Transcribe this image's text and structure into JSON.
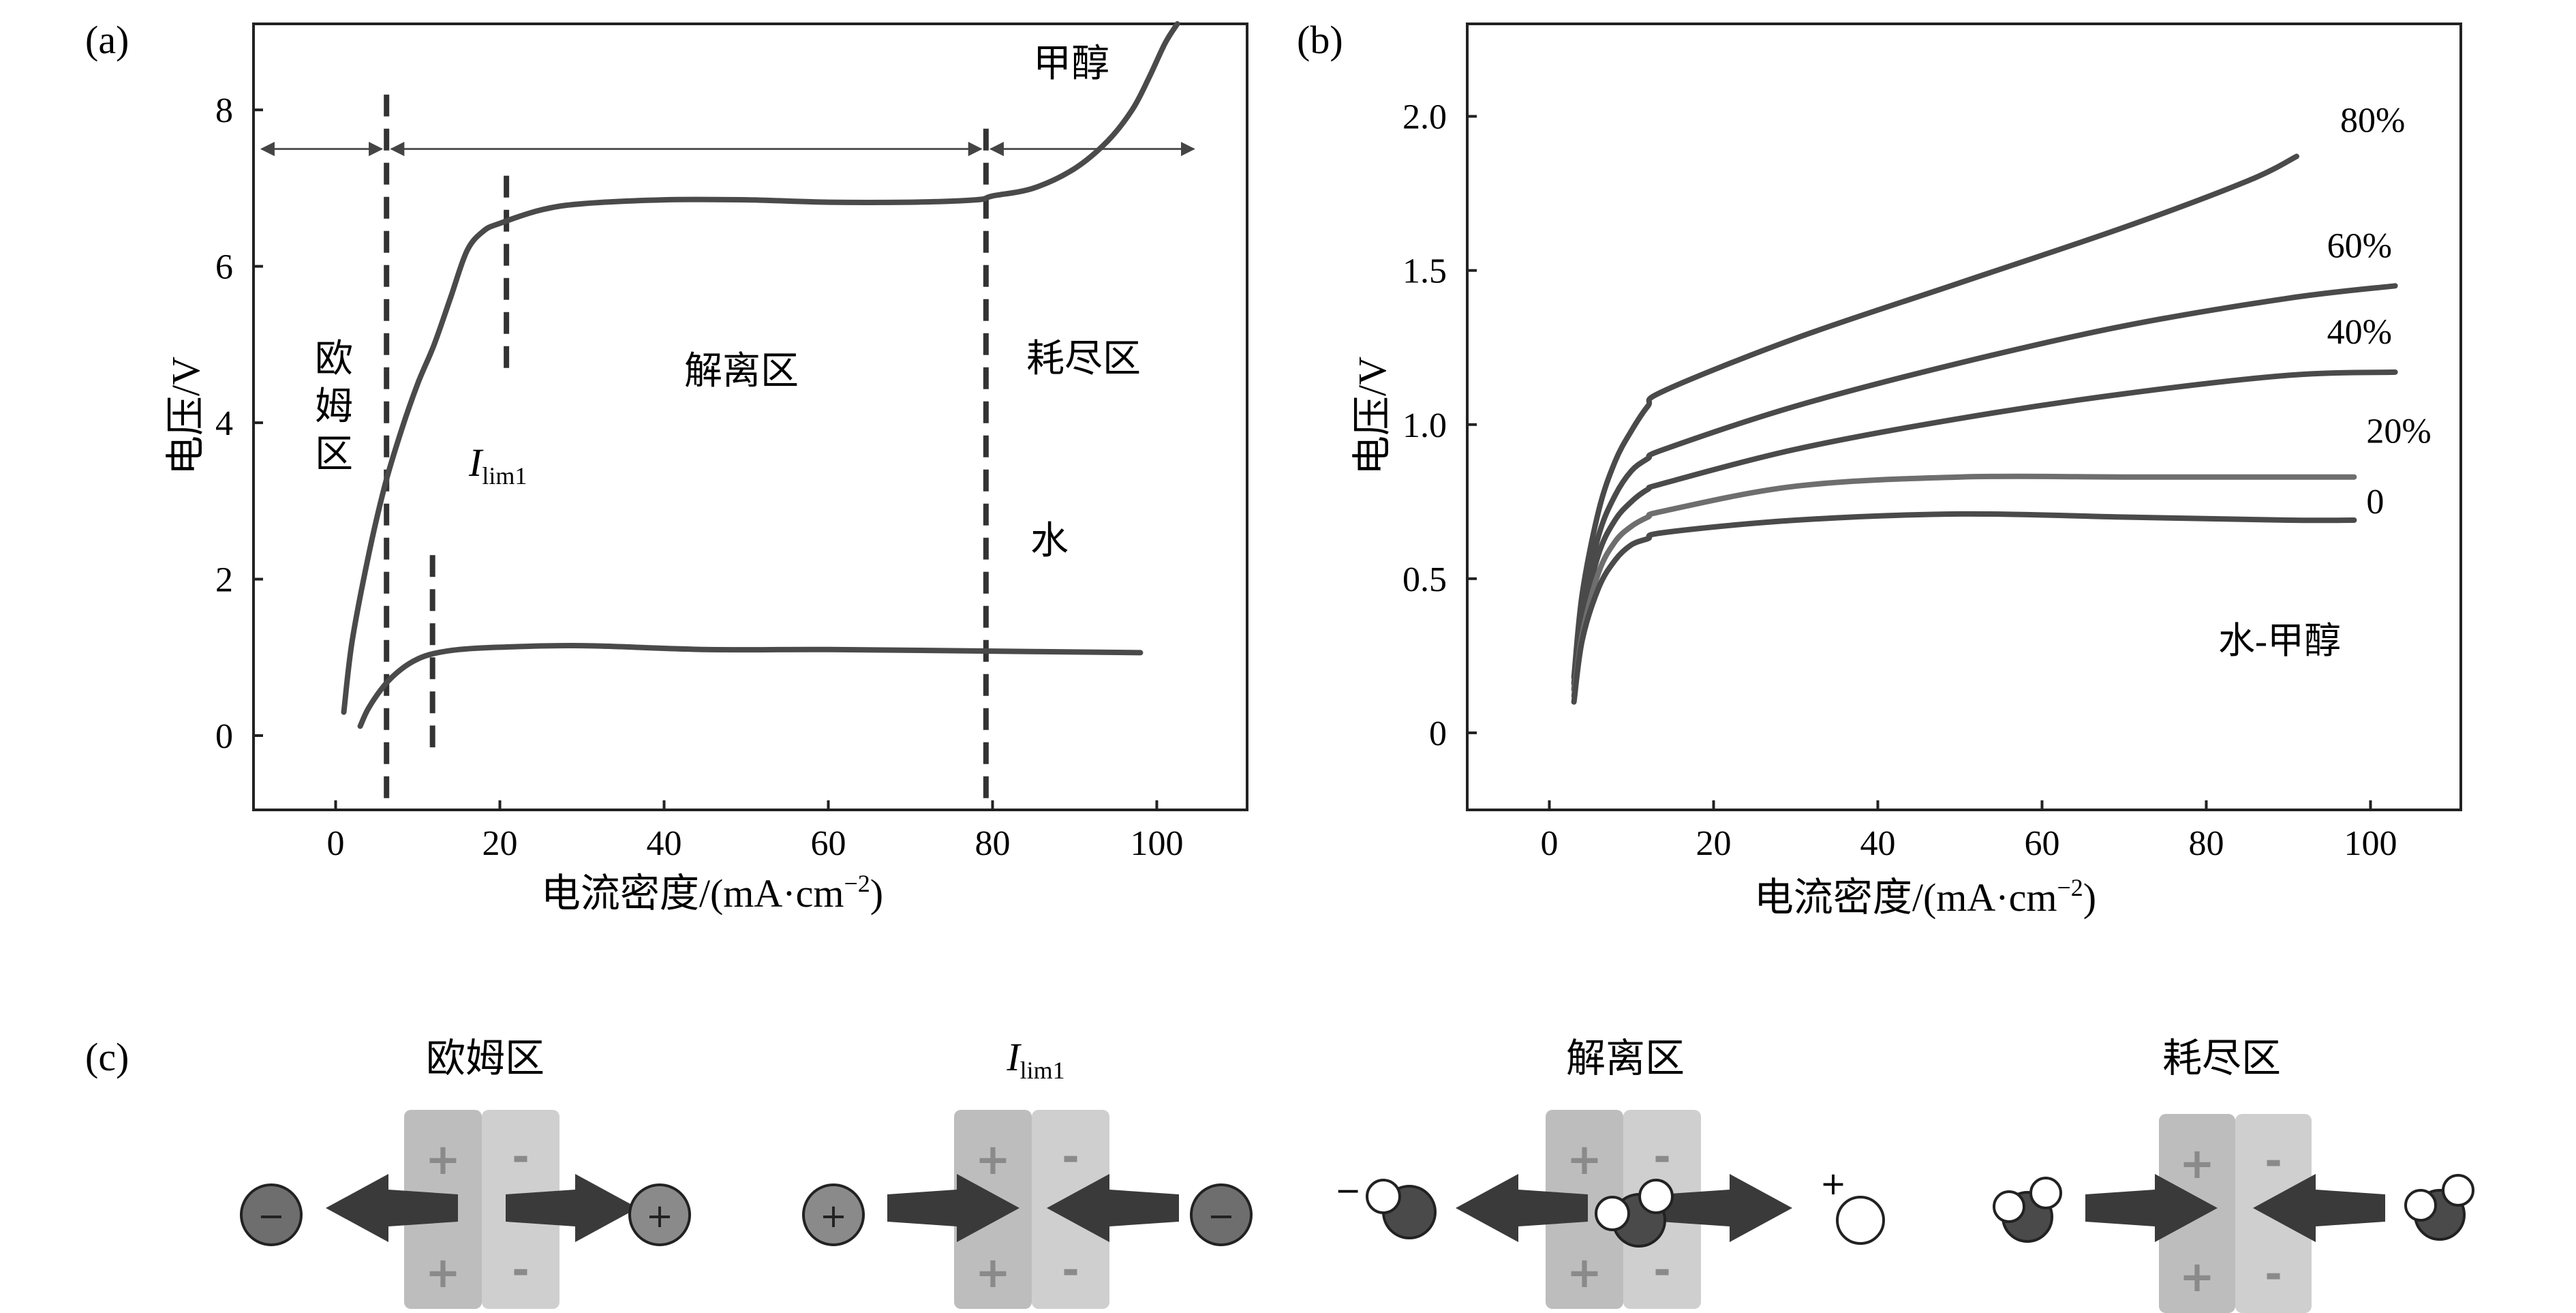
{
  "colors": {
    "curve": "#4a4a4a",
    "curve_light": "#6e6e6e",
    "axis": "#222222",
    "dashed": "#333333",
    "plate_left": "#bdbdbd",
    "plate_right": "#cfcfcf",
    "arrow": "#3a3a3a",
    "ion": "#7a7a7a",
    "molecule": "#4a4a4a"
  },
  "panel_a": {
    "label": "(a)",
    "xlabel": "电流密度/(mA·cm",
    "xlabel_sup": "−2",
    "xlabel_end": ")",
    "ylabel": "电压/V",
    "region_ohmic": [
      "欧",
      "姆",
      "区"
    ],
    "region_dissociation": "解离区",
    "region_depletion": "耗尽区",
    "ilim_main": "I",
    "ilim_sub": "lim1",
    "label_methanol": "甲醇",
    "label_water": "水",
    "chart_data": {
      "type": "line",
      "xlabel": "电流密度/(mA·cm−2)",
      "ylabel": "电压/V",
      "xlim": [
        -10,
        111
      ],
      "ylim": [
        -0.95,
        9.1
      ],
      "xticks": [
        0,
        20,
        40,
        60,
        80,
        100
      ],
      "yticks": [
        0,
        2,
        4,
        6,
        8
      ],
      "grid": false,
      "series": [
        {
          "name": "甲醇",
          "x": [
            1,
            2,
            4,
            6,
            8,
            10,
            12,
            14,
            16,
            18,
            20,
            25,
            30,
            40,
            50,
            60,
            70,
            78,
            80,
            85,
            90,
            94,
            97,
            99,
            101,
            102.5
          ],
          "y": [
            0.3,
            1.2,
            2.3,
            3.2,
            3.9,
            4.5,
            5.0,
            5.6,
            6.2,
            6.45,
            6.55,
            6.72,
            6.8,
            6.85,
            6.85,
            6.82,
            6.82,
            6.85,
            6.9,
            7.0,
            7.25,
            7.6,
            8.0,
            8.4,
            8.85,
            9.1
          ]
        },
        {
          "name": "水",
          "x": [
            3,
            4,
            6,
            8,
            10,
            12,
            15,
            20,
            30,
            45,
            60,
            80,
            98
          ],
          "y": [
            0.12,
            0.35,
            0.65,
            0.85,
            0.98,
            1.05,
            1.1,
            1.13,
            1.15,
            1.1,
            1.1,
            1.08,
            1.06
          ]
        }
      ],
      "dashed_verticals": [
        {
          "x": 6.2,
          "y": [
            -0.8,
            8.2
          ]
        },
        {
          "x": 20.8,
          "y": [
            4.7,
            7.3
          ]
        },
        {
          "x": 11.8,
          "y": [
            -0.15,
            2.35
          ]
        },
        {
          "x": 79.2,
          "y": [
            -0.8,
            7.9
          ]
        }
      ],
      "region_arrows": [
        {
          "from": -9,
          "to": 5.6,
          "y": 7.5
        },
        {
          "from": 6.8,
          "to": 78.6,
          "y": 7.5
        },
        {
          "from": 79.8,
          "to": 104.5,
          "y": 7.5
        }
      ]
    }
  },
  "panel_b": {
    "label": "(b)",
    "xlabel": "电流密度/(mA·cm",
    "xlabel_sup": "−2",
    "xlabel_end": ")",
    "ylabel": "电压/V",
    "annotation": "水-甲醇",
    "chart_data": {
      "type": "line",
      "xlabel": "电流密度/(mA·cm−2)",
      "ylabel": "电压/V",
      "xlim": [
        -10,
        111
      ],
      "ylim": [
        -0.25,
        2.3
      ],
      "xticks": [
        0,
        20,
        40,
        60,
        80,
        100
      ],
      "yticks": [
        0,
        0.5,
        1.0,
        1.5,
        2.0
      ],
      "ytick_labels": [
        "0",
        "0.5",
        "1.0",
        "1.5",
        "2.0"
      ],
      "grid": false,
      "series": [
        {
          "name": "80%",
          "x": [
            3,
            4,
            6,
            8,
            10,
            12,
            14,
            30,
            50,
            70,
            85,
            91
          ],
          "y": [
            0.18,
            0.45,
            0.72,
            0.88,
            0.98,
            1.06,
            1.11,
            1.28,
            1.46,
            1.64,
            1.79,
            1.87
          ]
        },
        {
          "name": "60%",
          "x": [
            3,
            4,
            6,
            8,
            10,
            12,
            14,
            30,
            50,
            70,
            90,
            103
          ],
          "y": [
            0.16,
            0.4,
            0.64,
            0.77,
            0.85,
            0.89,
            0.92,
            1.06,
            1.2,
            1.32,
            1.41,
            1.45
          ]
        },
        {
          "name": "40%",
          "x": [
            3,
            4,
            6,
            8,
            10,
            12,
            14,
            30,
            50,
            70,
            90,
            103
          ],
          "y": [
            0.14,
            0.36,
            0.58,
            0.69,
            0.75,
            0.79,
            0.81,
            0.92,
            1.02,
            1.1,
            1.16,
            1.17
          ]
        },
        {
          "name": "20%",
          "x": [
            3,
            4,
            6,
            8,
            10,
            12,
            14,
            30,
            50,
            70,
            90,
            98
          ],
          "y": [
            0.12,
            0.32,
            0.52,
            0.62,
            0.67,
            0.7,
            0.72,
            0.8,
            0.83,
            0.83,
            0.83,
            0.83
          ]
        },
        {
          "name": "0",
          "x": [
            3,
            4,
            6,
            8,
            10,
            12,
            14,
            30,
            50,
            70,
            90,
            98
          ],
          "y": [
            0.1,
            0.3,
            0.47,
            0.56,
            0.61,
            0.63,
            0.65,
            0.69,
            0.71,
            0.7,
            0.69,
            0.69
          ]
        }
      ]
    }
  },
  "panel_c": {
    "label": "(c)",
    "plus": "+",
    "minus": "-",
    "ion_plus": "+",
    "ion_minus": "−",
    "groups": [
      {
        "title": "欧姆区"
      },
      {
        "title_main": "I",
        "title_sub": "lim1"
      },
      {
        "title": "解离区",
        "minus_sign": "−",
        "plus_sign": "+"
      },
      {
        "title": "耗尽区"
      }
    ]
  }
}
